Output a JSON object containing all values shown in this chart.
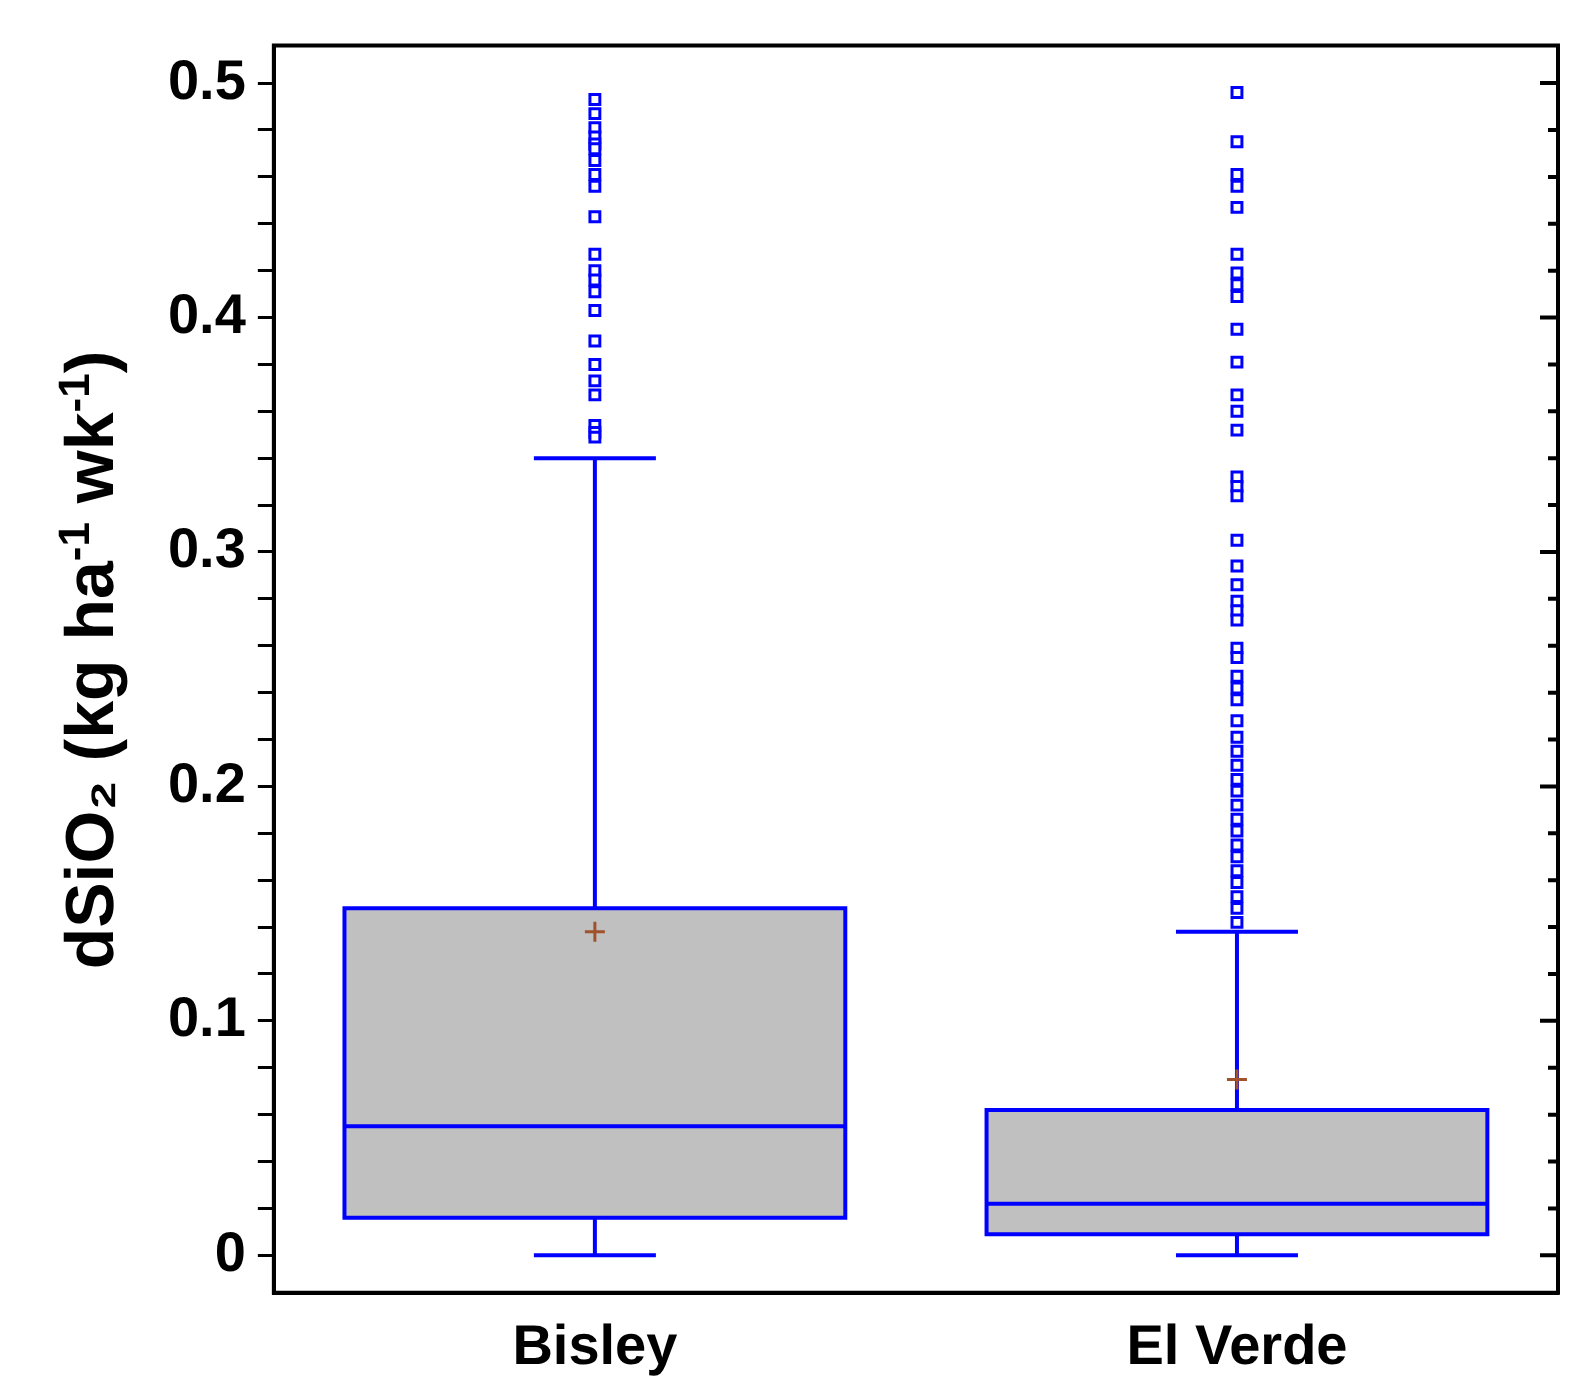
{
  "chart_data": {
    "type": "box",
    "ylabel": "dSiO₂ (kg ha$^{-1}$ wk$^{-1}$)",
    "categories": [
      "Bisley",
      "El Verde"
    ],
    "color": "#c0c0c0",
    "boxes": [
      {
        "low": 0,
        "q1": 0.016,
        "median": 0.055,
        "q3": 0.148,
        "high": 0.34,
        "mean": 0.138,
        "outliers": [
          0.493,
          0.487,
          0.481,
          0.477,
          0.474,
          0.472,
          0.467,
          0.461,
          0.456,
          0.443,
          0.427,
          0.42,
          0.416,
          0.411,
          0.403,
          0.39,
          0.38,
          0.373,
          0.367,
          0.354,
          0.351,
          0.349
        ]
      },
      {
        "low": 0,
        "q1": 0.009,
        "median": 0.022,
        "q3": 0.062,
        "high": 0.138,
        "mean": 0.075,
        "outliers": [
          0.496,
          0.475,
          0.461,
          0.456,
          0.447,
          0.427,
          0.419,
          0.414,
          0.409,
          0.395,
          0.381,
          0.367,
          0.36,
          0.352,
          0.332,
          0.328,
          0.324,
          0.305,
          0.294,
          0.286,
          0.279,
          0.275,
          0.271,
          0.259,
          0.255,
          0.247,
          0.242,
          0.237,
          0.228,
          0.221,
          0.215,
          0.209,
          0.203,
          0.198,
          0.192,
          0.186,
          0.181,
          0.175,
          0.17,
          0.164,
          0.159,
          0.153,
          0.148,
          0.142
        ]
      }
    ],
    "ylim": [
      -0.016,
      0.516
    ],
    "yticks": [
      0,
      {
        "value": 0.02,
        "label": null
      },
      {
        "value": 0.04,
        "label": null
      },
      {
        "value": 0.06,
        "label": null
      },
      {
        "value": 0.08,
        "label": null
      },
      0.1,
      {
        "value": 0.12,
        "label": null
      },
      {
        "value": 0.14,
        "label": null
      },
      {
        "value": 0.16,
        "label": null
      },
      {
        "value": 0.18,
        "label": null
      },
      0.2,
      {
        "value": 0.22,
        "label": null
      },
      {
        "value": 0.24,
        "label": null
      },
      {
        "value": 0.26,
        "label": null
      },
      {
        "value": 0.28,
        "label": null
      },
      0.3,
      {
        "value": 0.32,
        "label": null
      },
      {
        "value": 0.34,
        "label": null
      },
      {
        "value": 0.36,
        "label": null
      },
      {
        "value": 0.38,
        "label": null
      },
      0.4,
      {
        "value": 0.42,
        "label": null
      },
      {
        "value": 0.44,
        "label": null
      },
      {
        "value": 0.46,
        "label": null
      },
      {
        "value": 0.48,
        "label": null
      },
      0.5
    ]
  }
}
